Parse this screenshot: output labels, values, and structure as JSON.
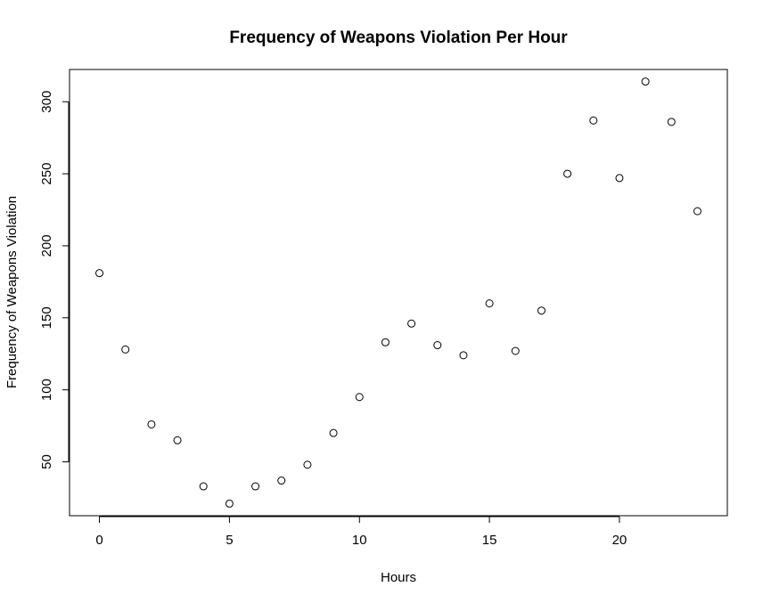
{
  "chart_data": {
    "type": "scatter",
    "title": "Frequency of Weapons Violation Per Hour",
    "xlabel": "Hours",
    "ylabel": "Frequency of Weapons Violation",
    "xlim": [
      -1.15,
      24.15
    ],
    "ylim": [
      12.6,
      322.4
    ],
    "xticks": [
      0,
      5,
      10,
      15,
      20
    ],
    "yticks": [
      50,
      100,
      150,
      200,
      250,
      300
    ],
    "grid": false,
    "legend": "none",
    "marker": "open-circle",
    "color": "#000000",
    "x": [
      0,
      1,
      2,
      3,
      4,
      5,
      6,
      7,
      8,
      9,
      10,
      11,
      12,
      13,
      14,
      15,
      16,
      17,
      18,
      19,
      20,
      21,
      22,
      23
    ],
    "y": [
      181,
      128,
      76,
      65,
      33,
      21,
      33,
      37,
      48,
      70,
      95,
      133,
      146,
      131,
      124,
      160,
      127,
      155,
      250,
      287,
      247,
      314,
      286,
      224
    ]
  }
}
